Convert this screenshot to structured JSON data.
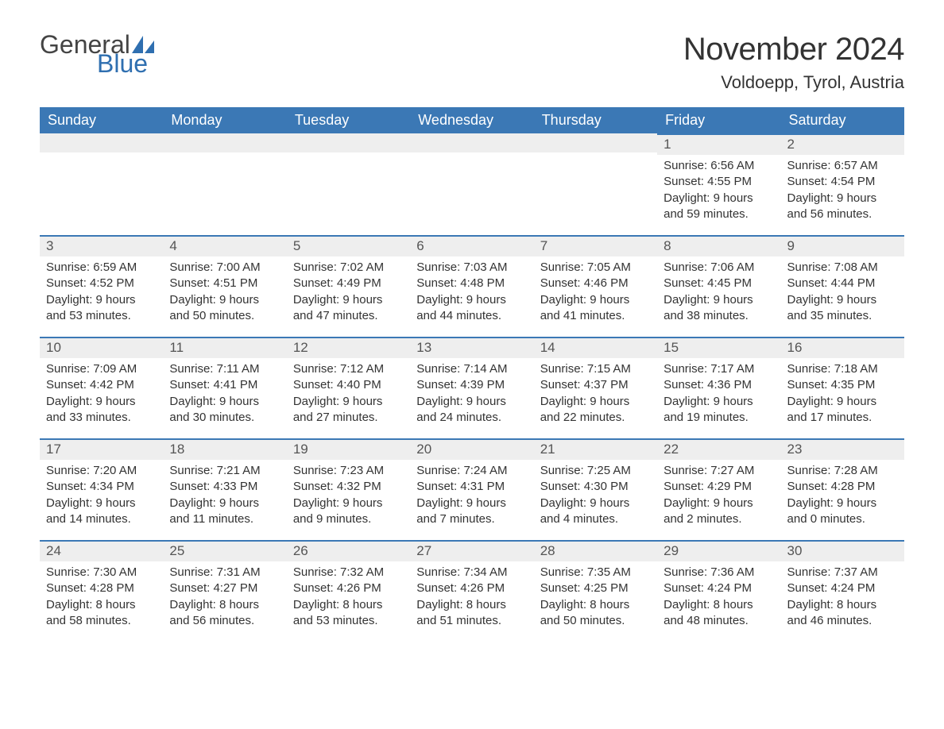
{
  "brand": {
    "word1": "General",
    "word2": "Blue",
    "sail_color": "#2f6fb0",
    "word1_color": "#444444",
    "word2_color": "#2f6fb0"
  },
  "title": "November 2024",
  "location": "Voldoepp, Tyrol, Austria",
  "colors": {
    "header_bg": "#3b78b5",
    "header_text": "#ffffff",
    "daynum_bg": "#eeeeee",
    "row_divider": "#3b78b5",
    "body_text": "#333333",
    "page_bg": "#ffffff"
  },
  "typography": {
    "title_fontsize": 40,
    "location_fontsize": 22,
    "header_fontsize": 18,
    "daynum_fontsize": 17,
    "body_fontsize": 15
  },
  "layout": {
    "columns": 7,
    "rows": 5,
    "first_day_column_index": 5
  },
  "day_headers": [
    "Sunday",
    "Monday",
    "Tuesday",
    "Wednesday",
    "Thursday",
    "Friday",
    "Saturday"
  ],
  "days": [
    {
      "n": 1,
      "sunrise": "6:56 AM",
      "sunset": "4:55 PM",
      "dl1": "Daylight: 9 hours",
      "dl2": "and 59 minutes."
    },
    {
      "n": 2,
      "sunrise": "6:57 AM",
      "sunset": "4:54 PM",
      "dl1": "Daylight: 9 hours",
      "dl2": "and 56 minutes."
    },
    {
      "n": 3,
      "sunrise": "6:59 AM",
      "sunset": "4:52 PM",
      "dl1": "Daylight: 9 hours",
      "dl2": "and 53 minutes."
    },
    {
      "n": 4,
      "sunrise": "7:00 AM",
      "sunset": "4:51 PM",
      "dl1": "Daylight: 9 hours",
      "dl2": "and 50 minutes."
    },
    {
      "n": 5,
      "sunrise": "7:02 AM",
      "sunset": "4:49 PM",
      "dl1": "Daylight: 9 hours",
      "dl2": "and 47 minutes."
    },
    {
      "n": 6,
      "sunrise": "7:03 AM",
      "sunset": "4:48 PM",
      "dl1": "Daylight: 9 hours",
      "dl2": "and 44 minutes."
    },
    {
      "n": 7,
      "sunrise": "7:05 AM",
      "sunset": "4:46 PM",
      "dl1": "Daylight: 9 hours",
      "dl2": "and 41 minutes."
    },
    {
      "n": 8,
      "sunrise": "7:06 AM",
      "sunset": "4:45 PM",
      "dl1": "Daylight: 9 hours",
      "dl2": "and 38 minutes."
    },
    {
      "n": 9,
      "sunrise": "7:08 AM",
      "sunset": "4:44 PM",
      "dl1": "Daylight: 9 hours",
      "dl2": "and 35 minutes."
    },
    {
      "n": 10,
      "sunrise": "7:09 AM",
      "sunset": "4:42 PM",
      "dl1": "Daylight: 9 hours",
      "dl2": "and 33 minutes."
    },
    {
      "n": 11,
      "sunrise": "7:11 AM",
      "sunset": "4:41 PM",
      "dl1": "Daylight: 9 hours",
      "dl2": "and 30 minutes."
    },
    {
      "n": 12,
      "sunrise": "7:12 AM",
      "sunset": "4:40 PM",
      "dl1": "Daylight: 9 hours",
      "dl2": "and 27 minutes."
    },
    {
      "n": 13,
      "sunrise": "7:14 AM",
      "sunset": "4:39 PM",
      "dl1": "Daylight: 9 hours",
      "dl2": "and 24 minutes."
    },
    {
      "n": 14,
      "sunrise": "7:15 AM",
      "sunset": "4:37 PM",
      "dl1": "Daylight: 9 hours",
      "dl2": "and 22 minutes."
    },
    {
      "n": 15,
      "sunrise": "7:17 AM",
      "sunset": "4:36 PM",
      "dl1": "Daylight: 9 hours",
      "dl2": "and 19 minutes."
    },
    {
      "n": 16,
      "sunrise": "7:18 AM",
      "sunset": "4:35 PM",
      "dl1": "Daylight: 9 hours",
      "dl2": "and 17 minutes."
    },
    {
      "n": 17,
      "sunrise": "7:20 AM",
      "sunset": "4:34 PM",
      "dl1": "Daylight: 9 hours",
      "dl2": "and 14 minutes."
    },
    {
      "n": 18,
      "sunrise": "7:21 AM",
      "sunset": "4:33 PM",
      "dl1": "Daylight: 9 hours",
      "dl2": "and 11 minutes."
    },
    {
      "n": 19,
      "sunrise": "7:23 AM",
      "sunset": "4:32 PM",
      "dl1": "Daylight: 9 hours",
      "dl2": "and 9 minutes."
    },
    {
      "n": 20,
      "sunrise": "7:24 AM",
      "sunset": "4:31 PM",
      "dl1": "Daylight: 9 hours",
      "dl2": "and 7 minutes."
    },
    {
      "n": 21,
      "sunrise": "7:25 AM",
      "sunset": "4:30 PM",
      "dl1": "Daylight: 9 hours",
      "dl2": "and 4 minutes."
    },
    {
      "n": 22,
      "sunrise": "7:27 AM",
      "sunset": "4:29 PM",
      "dl1": "Daylight: 9 hours",
      "dl2": "and 2 minutes."
    },
    {
      "n": 23,
      "sunrise": "7:28 AM",
      "sunset": "4:28 PM",
      "dl1": "Daylight: 9 hours",
      "dl2": "and 0 minutes."
    },
    {
      "n": 24,
      "sunrise": "7:30 AM",
      "sunset": "4:28 PM",
      "dl1": "Daylight: 8 hours",
      "dl2": "and 58 minutes."
    },
    {
      "n": 25,
      "sunrise": "7:31 AM",
      "sunset": "4:27 PM",
      "dl1": "Daylight: 8 hours",
      "dl2": "and 56 minutes."
    },
    {
      "n": 26,
      "sunrise": "7:32 AM",
      "sunset": "4:26 PM",
      "dl1": "Daylight: 8 hours",
      "dl2": "and 53 minutes."
    },
    {
      "n": 27,
      "sunrise": "7:34 AM",
      "sunset": "4:26 PM",
      "dl1": "Daylight: 8 hours",
      "dl2": "and 51 minutes."
    },
    {
      "n": 28,
      "sunrise": "7:35 AM",
      "sunset": "4:25 PM",
      "dl1": "Daylight: 8 hours",
      "dl2": "and 50 minutes."
    },
    {
      "n": 29,
      "sunrise": "7:36 AM",
      "sunset": "4:24 PM",
      "dl1": "Daylight: 8 hours",
      "dl2": "and 48 minutes."
    },
    {
      "n": 30,
      "sunrise": "7:37 AM",
      "sunset": "4:24 PM",
      "dl1": "Daylight: 8 hours",
      "dl2": "and 46 minutes."
    }
  ],
  "labels": {
    "sunrise_prefix": "Sunrise: ",
    "sunset_prefix": "Sunset: "
  }
}
